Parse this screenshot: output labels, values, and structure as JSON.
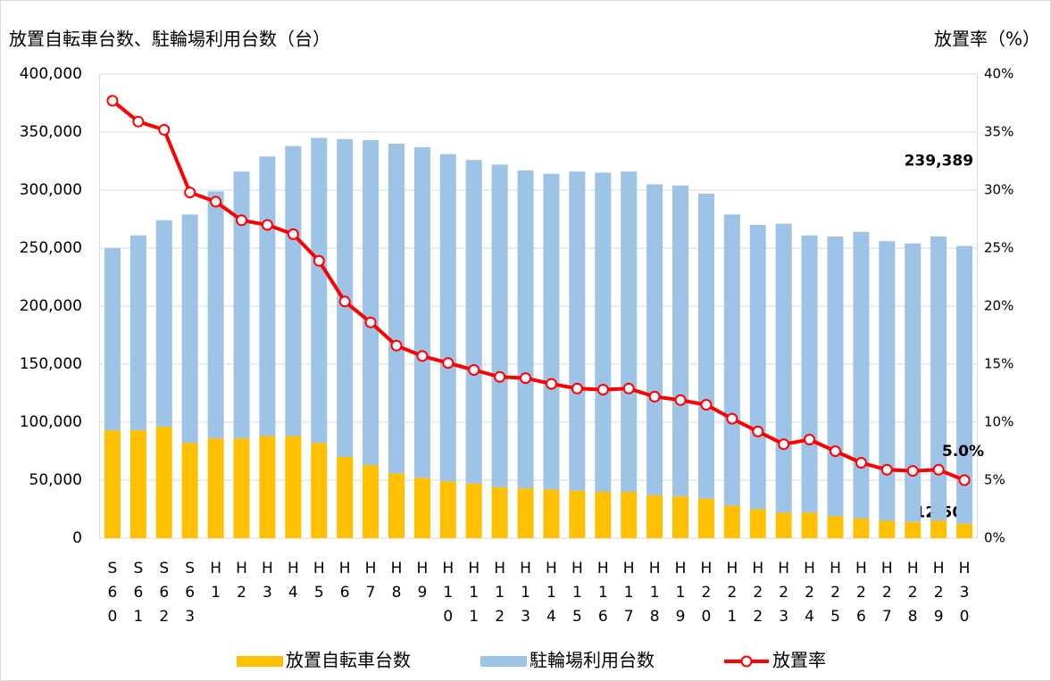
{
  "chart_data": {
    "type": "bar",
    "y_axis_title": "放置自転車台数、駐輪場利用台数（台）",
    "y2_axis_title": "放置率（%）",
    "categories": [
      "S60",
      "S61",
      "S62",
      "S63",
      "H1",
      "H2",
      "H3",
      "H4",
      "H5",
      "H6",
      "H7",
      "H8",
      "H9",
      "H10",
      "H11",
      "H12",
      "H13",
      "H14",
      "H15",
      "H16",
      "H17",
      "H18",
      "H19",
      "H20",
      "H21",
      "H22",
      "H23",
      "H24",
      "H25",
      "H26",
      "H27",
      "H28",
      "H29",
      "H30"
    ],
    "series": [
      {
        "name": "放置自転車台数",
        "color": "#ffc000",
        "stack": true,
        "values": [
          93000,
          93000,
          96000,
          82000,
          86000,
          86000,
          88000,
          88000,
          82000,
          70000,
          63000,
          56000,
          52000,
          49000,
          47000,
          44000,
          43000,
          42000,
          41000,
          40000,
          40000,
          37000,
          36000,
          34000,
          28000,
          25000,
          22000,
          22000,
          19000,
          17000,
          15000,
          14000,
          15000,
          12509
        ],
        "value_labels": [
          null,
          null,
          null,
          null,
          null,
          null,
          null,
          null,
          null,
          null,
          null,
          null,
          null,
          null,
          null,
          null,
          null,
          null,
          null,
          null,
          null,
          null,
          null,
          null,
          null,
          null,
          null,
          null,
          null,
          null,
          null,
          null,
          null,
          "12,509"
        ]
      },
      {
        "name": "駐輪場利用台数",
        "color": "#9dc3e6",
        "stack": true,
        "values": [
          157000,
          168000,
          178000,
          197000,
          213000,
          230000,
          241000,
          250000,
          263000,
          274000,
          280000,
          284000,
          285000,
          282000,
          279000,
          278000,
          274000,
          272000,
          275000,
          275000,
          276000,
          268000,
          268000,
          263000,
          251000,
          245000,
          249000,
          239000,
          241000,
          247000,
          241000,
          240000,
          245000,
          239389
        ],
        "value_labels": [
          null,
          null,
          null,
          null,
          null,
          null,
          null,
          null,
          null,
          null,
          null,
          null,
          null,
          null,
          null,
          null,
          null,
          null,
          null,
          null,
          null,
          null,
          null,
          null,
          null,
          null,
          null,
          null,
          null,
          null,
          null,
          null,
          null,
          "239,389"
        ]
      },
      {
        "name": "放置率",
        "color": "#ff0000",
        "type": "line",
        "axis": "y2",
        "values": [
          37.7,
          35.9,
          35.2,
          29.8,
          29.0,
          27.4,
          27.0,
          26.2,
          23.9,
          20.4,
          18.6,
          16.6,
          15.7,
          15.1,
          14.5,
          13.9,
          13.8,
          13.3,
          12.9,
          12.8,
          12.9,
          12.2,
          11.9,
          11.5,
          10.3,
          9.2,
          8.1,
          8.5,
          7.5,
          6.5,
          5.9,
          5.8,
          5.9,
          5.0
        ],
        "value_labels": [
          null,
          null,
          null,
          null,
          null,
          null,
          null,
          null,
          null,
          null,
          null,
          null,
          null,
          null,
          null,
          null,
          null,
          null,
          null,
          null,
          null,
          null,
          null,
          null,
          null,
          null,
          null,
          null,
          null,
          null,
          null,
          null,
          null,
          "5.0%"
        ]
      }
    ],
    "ylim": [
      0,
      400000
    ],
    "yticks": [
      0,
      {
        "value": 50000,
        "label": "50,000"
      },
      {
        "value": 100000,
        "label": "100,000"
      },
      {
        "value": 150000,
        "label": "150,000"
      },
      {
        "value": 200000,
        "label": "200,000"
      },
      {
        "value": 250000,
        "label": "250,000"
      },
      {
        "value": 300000,
        "label": "300,000"
      },
      {
        "value": 350000,
        "label": "350,000"
      },
      {
        "value": 400000,
        "label": "400,000"
      }
    ],
    "y2lim": [
      0,
      40
    ],
    "y2ticks": [
      {
        "value": 0,
        "label": "0%"
      },
      {
        "value": 5,
        "label": "5%"
      },
      {
        "value": 10,
        "label": "10%"
      },
      {
        "value": 15,
        "label": "15%"
      },
      {
        "value": 20,
        "label": "20%"
      },
      {
        "value": 25,
        "label": "25%"
      },
      {
        "value": 30,
        "label": "30%"
      },
      {
        "value": 35,
        "label": "35%"
      },
      {
        "value": 40,
        "label": "40%"
      }
    ],
    "grid": true,
    "legend": "bottom"
  }
}
